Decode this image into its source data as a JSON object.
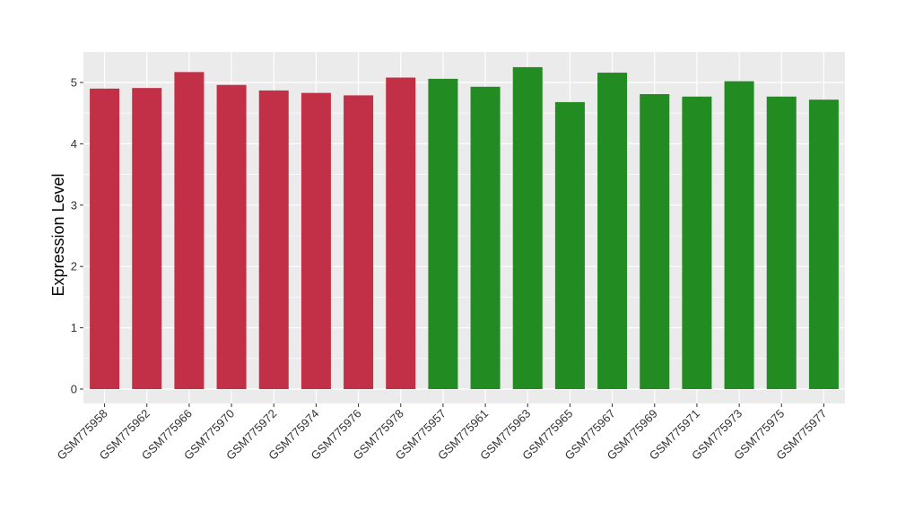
{
  "chart_data": {
    "type": "bar",
    "title": "",
    "xlabel": "",
    "ylabel": "Expression Level",
    "ylim": [
      0,
      5.5
    ],
    "yticks": [
      "0",
      "1",
      "2",
      "3",
      "4",
      "5"
    ],
    "grid": true,
    "legend": "none",
    "categories": [
      "GSM775958",
      "GSM775962",
      "GSM775966",
      "GSM775970",
      "GSM775972",
      "GSM775974",
      "GSM775976",
      "GSM775978",
      "GSM775957",
      "GSM775961",
      "GSM775963",
      "GSM775965",
      "GSM775967",
      "GSM775969",
      "GSM775971",
      "GSM775973",
      "GSM775975",
      "GSM775977"
    ],
    "values": [
      4.9,
      4.91,
      5.17,
      4.96,
      4.87,
      4.83,
      4.79,
      5.08,
      5.06,
      4.93,
      5.25,
      4.68,
      5.16,
      4.81,
      4.77,
      5.02,
      4.77,
      4.72
    ],
    "bar_colors": [
      "#c23048",
      "#c23048",
      "#c23048",
      "#c23048",
      "#c23048",
      "#c23048",
      "#c23048",
      "#c23048",
      "#228b22",
      "#228b22",
      "#228b22",
      "#228b22",
      "#228b22",
      "#228b22",
      "#228b22",
      "#228b22",
      "#228b22",
      "#228b22"
    ],
    "panel_background": "#ebebeb",
    "grid_color": "#ffffff"
  }
}
